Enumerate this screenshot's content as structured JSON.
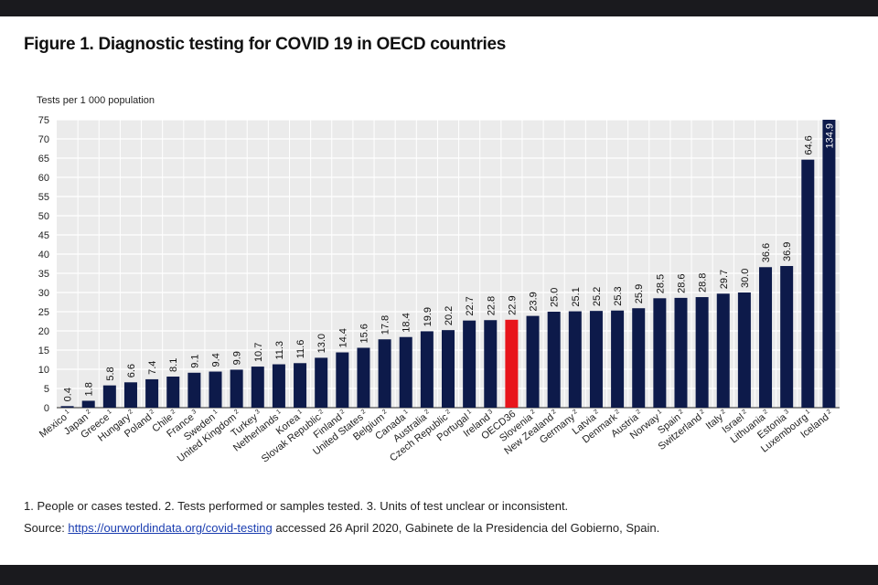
{
  "chart_data": {
    "type": "bar",
    "title": "Figure 1. Diagnostic testing for COVID 19 in OECD countries",
    "ylabel": "Tests per 1 000 population",
    "ylim": [
      0,
      75
    ],
    "yticks": [
      0,
      5,
      10,
      15,
      20,
      25,
      30,
      35,
      40,
      45,
      50,
      55,
      60,
      65,
      70,
      75
    ],
    "grid": true,
    "categories": [
      "Mexico",
      "Japan",
      "Greece",
      "Hungary",
      "Poland",
      "Chile",
      "France",
      "Sweden",
      "United Kingdom",
      "Turkey",
      "Netherlands",
      "Korea",
      "Slovak Republic",
      "Finland",
      "United States",
      "Belgium",
      "Canada",
      "Australia",
      "Czech Republic",
      "Portugal",
      "Ireland",
      "OECD36",
      "Slovenia",
      "New Zealand",
      "Germany",
      "Latvia",
      "Denmark",
      "Austria",
      "Norway",
      "Spain",
      "Switzerland",
      "Italy",
      "Israel",
      "Lithuania",
      "Estonia",
      "Luxembourg",
      "Iceland"
    ],
    "footnote_marks": [
      "1",
      "2",
      "1",
      "2",
      "2",
      "2",
      "3",
      "1",
      "2",
      "3",
      "1",
      "1",
      "2",
      "2",
      "2",
      "2",
      "1",
      "2",
      "2",
      "1",
      "3",
      "",
      "2",
      "2",
      "2",
      "2",
      "2",
      "2",
      "1",
      "2",
      "2",
      "2",
      "2",
      "2",
      "3",
      "1",
      "2"
    ],
    "values": [
      0.4,
      1.8,
      5.8,
      6.6,
      7.4,
      8.1,
      9.1,
      9.4,
      9.9,
      10.7,
      11.3,
      11.6,
      13.0,
      14.4,
      15.6,
      17.8,
      18.4,
      19.9,
      20.2,
      22.7,
      22.8,
      22.9,
      23.9,
      25.0,
      25.1,
      25.2,
      25.3,
      25.9,
      28.5,
      28.6,
      28.8,
      29.7,
      30.0,
      36.6,
      36.9,
      64.6,
      134.9
    ],
    "value_labels": [
      "0.4",
      "1.8",
      "5.8",
      "6.6",
      "7.4",
      "8.1",
      "9.1",
      "9.4",
      "9.9",
      "10.7",
      "11.3",
      "11.6",
      "13.0",
      "14.4",
      "15.6",
      "17.8",
      "18.4",
      "19.9",
      "20.2",
      "22.7",
      "22.8",
      "22.9",
      "23.9",
      "25.0",
      "25.1",
      "25.2",
      "25.3",
      "25.9",
      "28.5",
      "28.6",
      "28.8",
      "29.7",
      "30.0",
      "36.6",
      "36.9",
      "64.6",
      "134.9"
    ],
    "highlight": "OECD36",
    "colors": {
      "bar": "#0d1a4a",
      "highlight": "#e8141b",
      "plot_bg": "#ebebeb",
      "grid": "#ffffff"
    }
  },
  "notes": {
    "footnotes": "1. People or cases tested. 2. Tests performed or samples tested. 3. Units of test unclear or inconsistent.",
    "source_prefix": "Source: ",
    "source_link": "https://ourworldindata.org/covid-testing",
    "source_suffix": " accessed 26 April 2020, Gabinete de la Presidencia del Gobierno, Spain."
  }
}
